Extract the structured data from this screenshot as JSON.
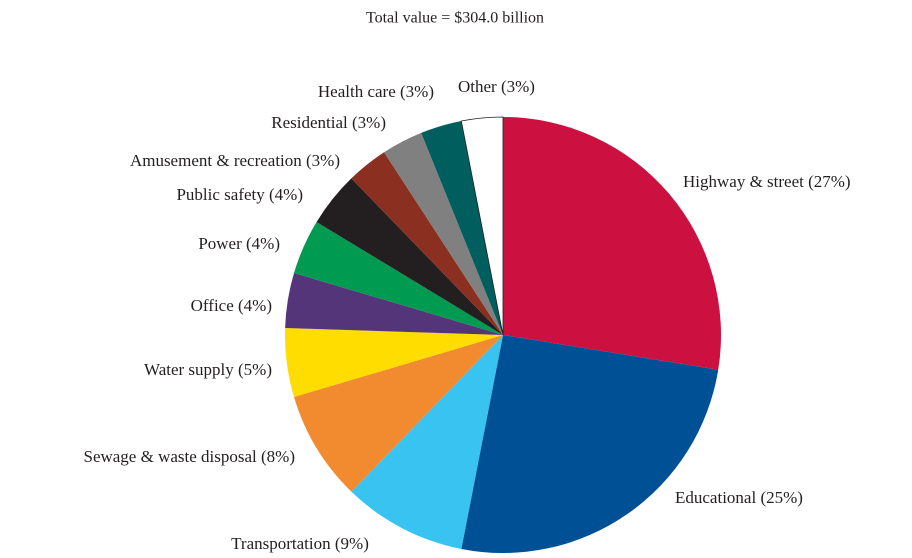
{
  "chart_data": {
    "type": "pie",
    "title": "Total value = $304.0 billion",
    "categories": [
      "Highway & street",
      "Educational",
      "Transportation",
      "Sewage & waste disposal",
      "Water supply",
      "Office",
      "Power",
      "Public safety",
      "Amusement & recreation",
      "Residential",
      "Health care",
      "Other "
    ],
    "values": [
      27,
      25,
      9,
      8,
      5,
      4,
      4,
      4,
      3,
      3,
      3,
      3
    ],
    "value_labels": [
      "(27%)",
      "(25%)",
      "(9%)",
      "(8%)",
      "(5%)",
      "(4%)",
      "(4%)",
      "(4%)",
      "(3%)",
      "(3%)",
      "(3%)",
      "(3%)"
    ],
    "colors": [
      "#cc1040",
      "#005096",
      "#38c3f0",
      "#f28a30",
      "#ffdd00",
      "#55357a",
      "#009a50",
      "#231f20",
      "#8b3020",
      "#808080",
      "#005e5e",
      "#ffffff"
    ]
  }
}
